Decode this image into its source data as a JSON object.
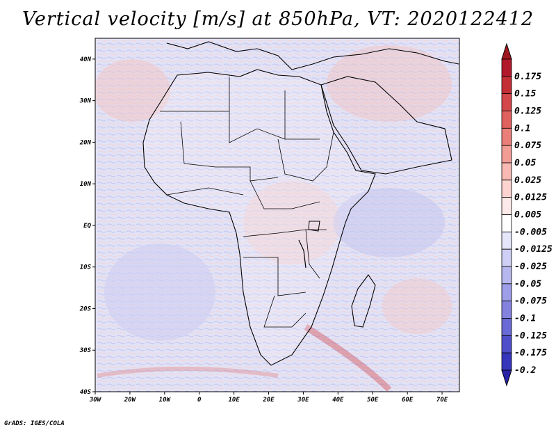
{
  "title": "Vertical velocity [m/s] at 850hPa, VT: 2020122412",
  "credit": "GrADS: IGES/COLA",
  "map": {
    "extent": {
      "lon_min": -30,
      "lon_max": 75,
      "lat_min": -40,
      "lat_max": 45
    },
    "lat_ticks": [
      {
        "value": 40,
        "label": "40N"
      },
      {
        "value": 30,
        "label": "30N"
      },
      {
        "value": 20,
        "label": "20N"
      },
      {
        "value": 10,
        "label": "10N"
      },
      {
        "value": 0,
        "label": "EQ"
      },
      {
        "value": -10,
        "label": "10S"
      },
      {
        "value": -20,
        "label": "20S"
      },
      {
        "value": -30,
        "label": "30S"
      },
      {
        "value": -40,
        "label": "40S"
      }
    ],
    "lon_ticks": [
      {
        "value": -30,
        "label": "30W"
      },
      {
        "value": -20,
        "label": "20W"
      },
      {
        "value": -10,
        "label": "10W"
      },
      {
        "value": 0,
        "label": "0"
      },
      {
        "value": 10,
        "label": "10E"
      },
      {
        "value": 20,
        "label": "20E"
      },
      {
        "value": 30,
        "label": "30E"
      },
      {
        "value": 40,
        "label": "40E"
      },
      {
        "value": 50,
        "label": "50E"
      },
      {
        "value": 60,
        "label": "60E"
      },
      {
        "value": 70,
        "label": "70E"
      }
    ]
  },
  "colorbar": {
    "levels": [
      {
        "label": "0.175",
        "color": "#b2182b"
      },
      {
        "label": "0.15",
        "color": "#c42e35"
      },
      {
        "label": "0.125",
        "color": "#d4474a"
      },
      {
        "label": "0.1",
        "color": "#e0625f"
      },
      {
        "label": "0.075",
        "color": "#ea7f7a"
      },
      {
        "label": "0.05",
        "color": "#f29c96"
      },
      {
        "label": "0.025",
        "color": "#f8b9b3"
      },
      {
        "label": "0.0125",
        "color": "#fcd3cf"
      },
      {
        "label": "0.005",
        "color": "#fde9e7"
      },
      {
        "label": "-0.005",
        "color": "#ffffff"
      },
      {
        "label": "-0.0125",
        "color": "#e6e6fb"
      },
      {
        "label": "-0.025",
        "color": "#cfcff5"
      },
      {
        "label": "-0.05",
        "color": "#b7b7ef"
      },
      {
        "label": "-0.075",
        "color": "#9d9de8"
      },
      {
        "label": "-0.1",
        "color": "#8383df"
      },
      {
        "label": "-0.125",
        "color": "#6a6ad6"
      },
      {
        "label": "-0.175",
        "color": "#4f4fc9"
      },
      {
        "label": "-0.2",
        "color": "#3636bd"
      }
    ],
    "top_color": "#a01620",
    "bottom_color": "#2a22a8"
  }
}
